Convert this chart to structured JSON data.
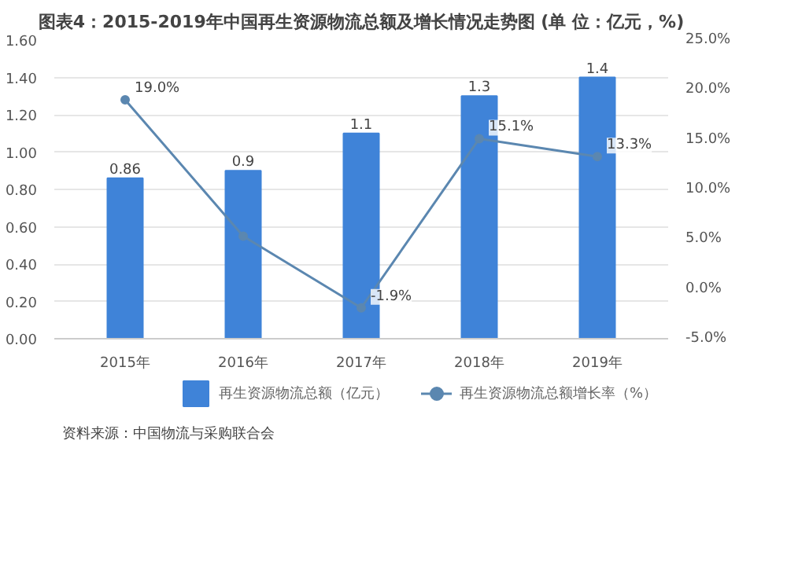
{
  "chart_data": {
    "type": "bar",
    "title": "图表4：2015-2019年中国再生资源物流总额及增长情况走势图 (单 位：亿元，%)",
    "categories": [
      "2015年",
      "2016年",
      "2017年",
      "2018年",
      "2019年"
    ],
    "series": [
      {
        "name": "再生资源物流总额（亿元）",
        "color": "#3f83d8",
        "values": [
          0.86,
          0.9,
          1.1,
          1.3,
          1.4
        ],
        "value_labels": [
          "0.86",
          "0.9",
          "1.1",
          "1.3",
          "1.4"
        ]
      },
      {
        "name": "再生资源物流总额增长率（%）",
        "type": "line",
        "axis": "y2",
        "color": "#5b87b0",
        "values": [
          19.0,
          5.3,
          -1.9,
          15.1,
          13.3
        ],
        "value_labels": [
          "19.0%",
          null,
          "-1.9%",
          "15.1%",
          "13.3%"
        ]
      }
    ],
    "ylim": [
      0,
      1.6
    ],
    "yticks": [
      {
        "value": 0,
        "label": "0.00"
      },
      {
        "value": 0.2,
        "label": "0.20"
      },
      {
        "value": 0.4,
        "label": "0.40"
      },
      {
        "value": 0.6,
        "label": "0.60"
      },
      {
        "value": 0.8,
        "label": "0.80"
      },
      {
        "value": 1.0,
        "label": "1.00"
      },
      {
        "value": 1.2,
        "label": "1.20"
      },
      {
        "value": 1.4,
        "label": "1.40"
      },
      {
        "value": 1.6,
        "label": "1.60"
      }
    ],
    "y2lim": [
      -5,
      25
    ],
    "y2ticks": [
      {
        "value": -5,
        "label": "-5.0%"
      },
      {
        "value": 0,
        "label": "0.0%"
      },
      {
        "value": 5,
        "label": "5.0%"
      },
      {
        "value": 10,
        "label": "10.0%"
      },
      {
        "value": 15,
        "label": "15.0%"
      },
      {
        "value": 20,
        "label": "20.0%"
      },
      {
        "value": 25,
        "label": "25.0%"
      }
    ],
    "grid": "y",
    "legend": "bottom",
    "marker": "circle",
    "line_style": "solid",
    "annotations": [
      "资料来源：中国物流与采购联合会"
    ]
  }
}
